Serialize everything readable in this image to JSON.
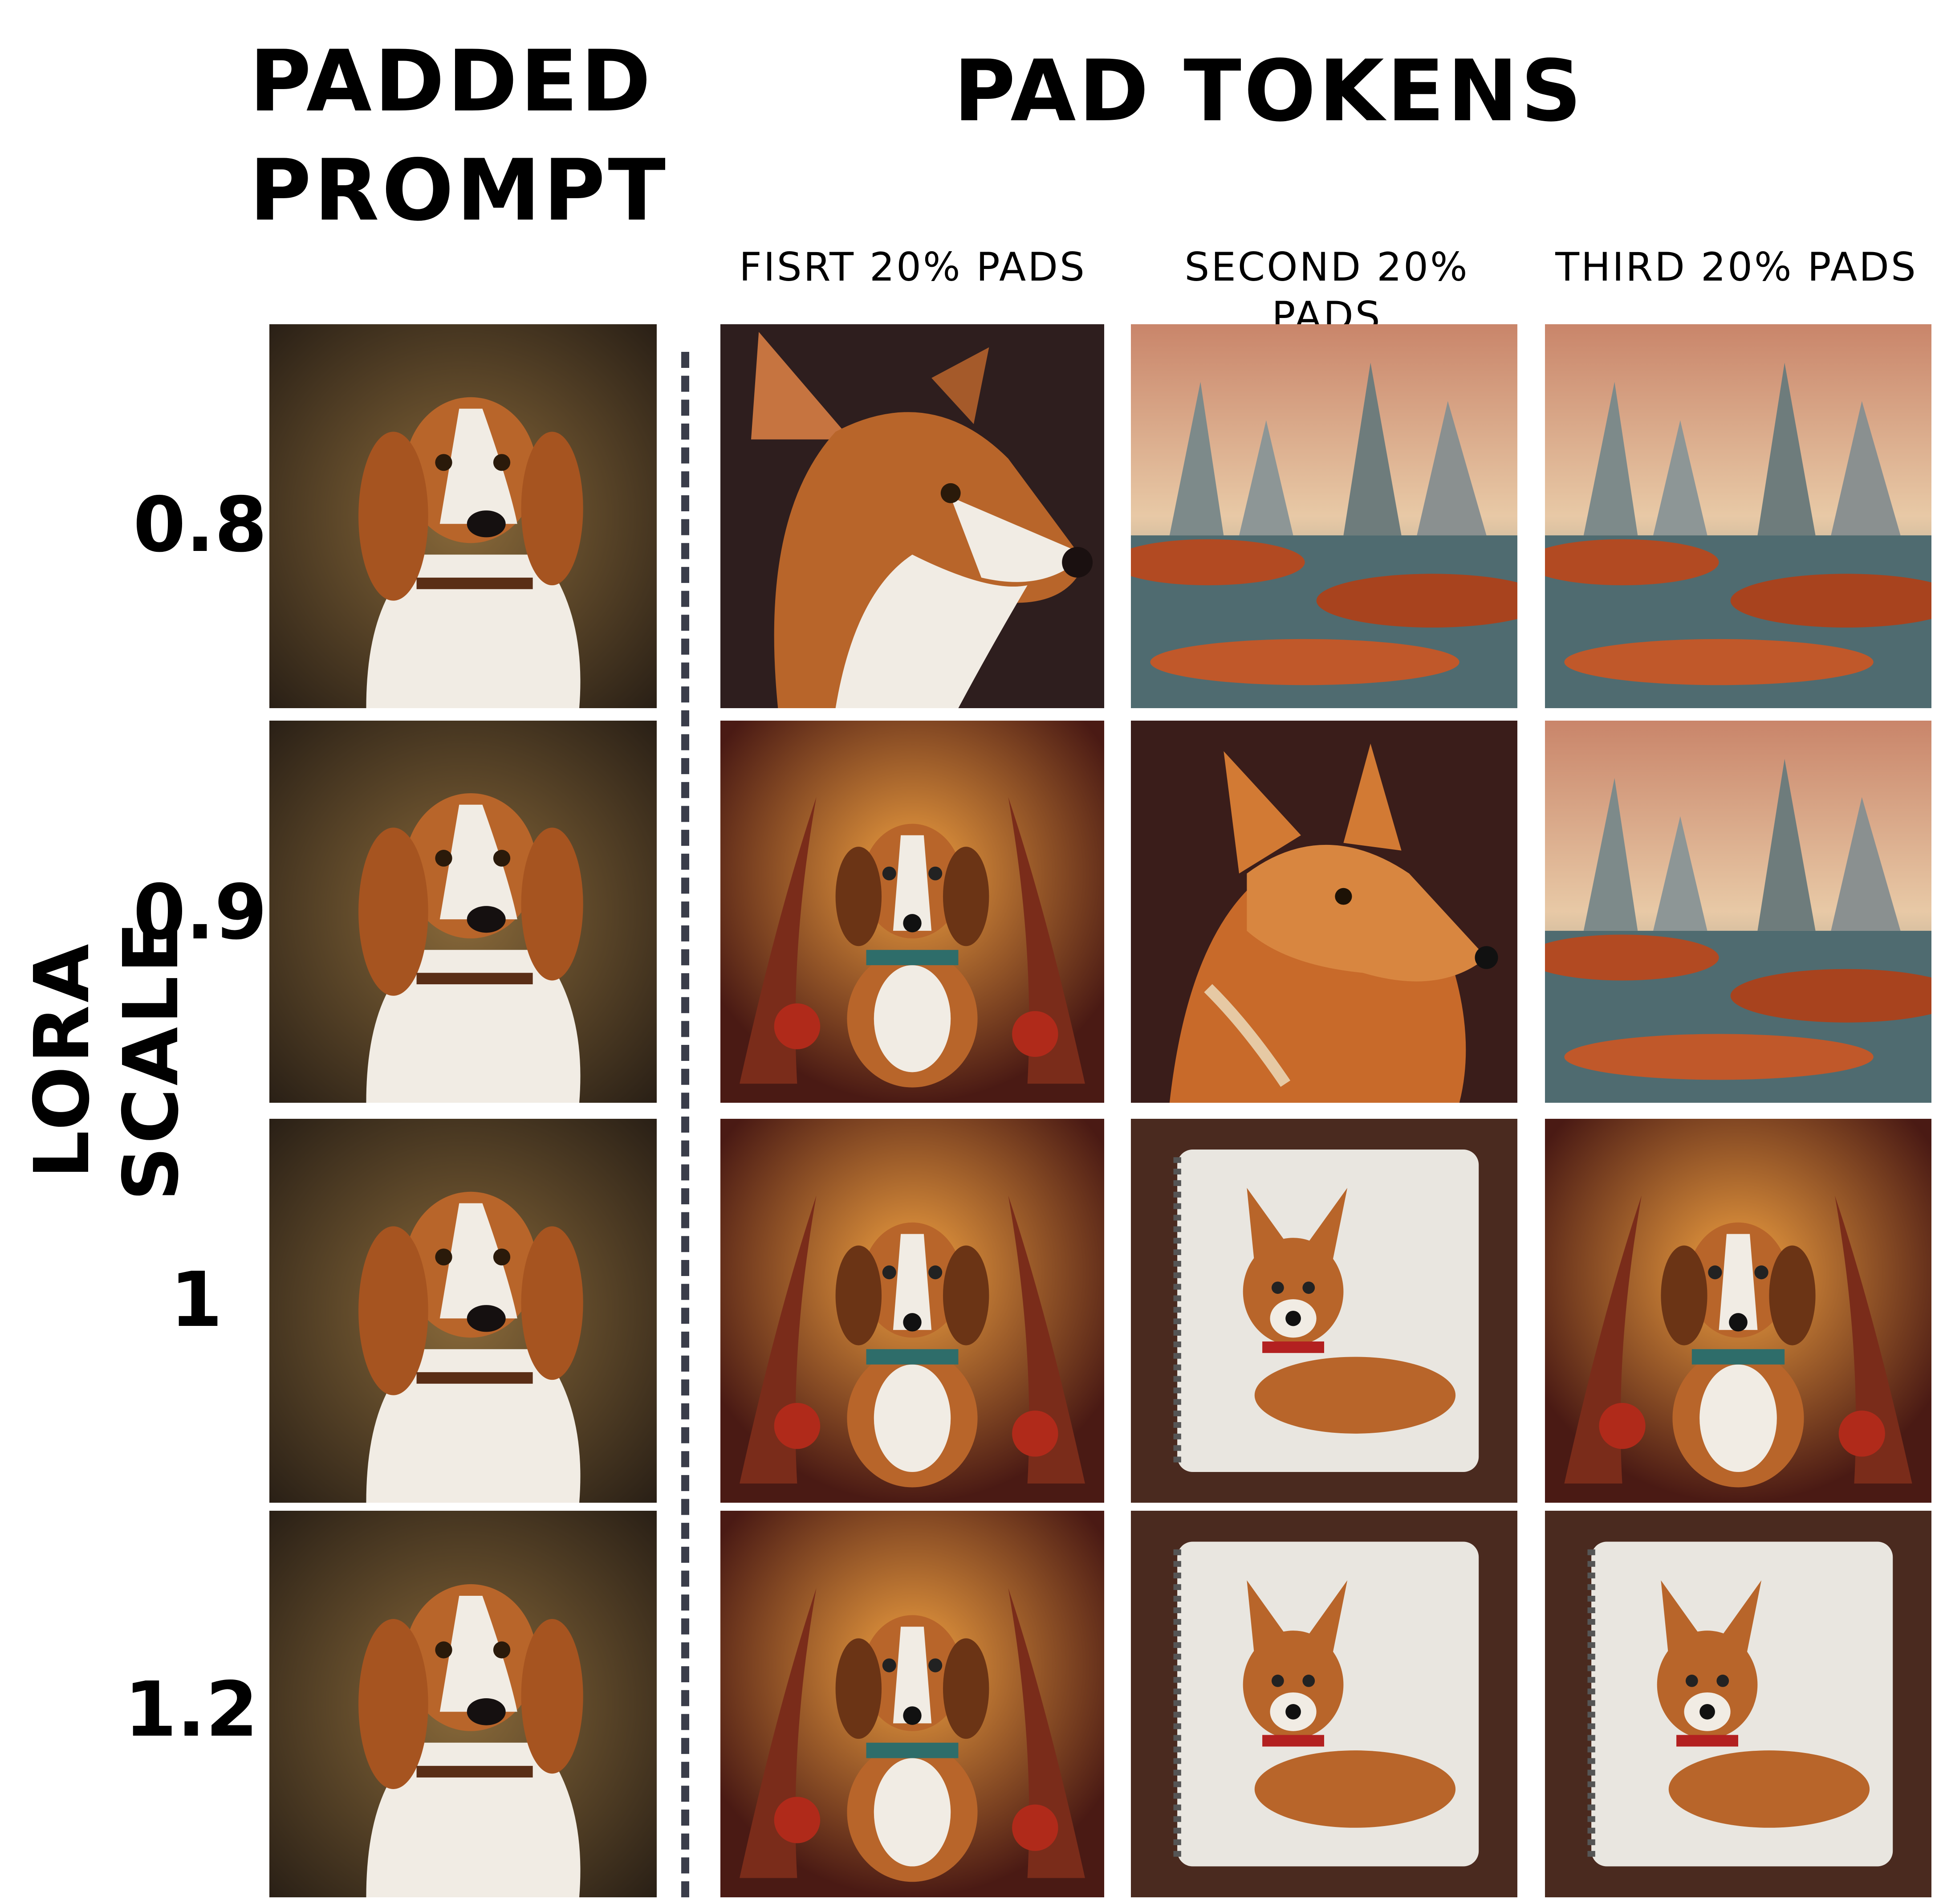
{
  "headers": {
    "padded_prompt": "PADDED PROMPT",
    "pad_tokens": "PAD TOKENS",
    "columns": [
      "FISRT 20% PADS",
      "SECOND 20% PADS",
      "THIRD 20% PADS"
    ],
    "row_axis": "LORA SCALE"
  },
  "lora_scales": [
    "0.8",
    "0.9",
    "1",
    "1.2"
  ],
  "colors": {
    "divider": "#3a3d4a",
    "dog_brown": "#b8652a",
    "dog_white": "#f1ece4"
  },
  "grid": [
    [
      "beagle-portrait",
      "dog-portrait",
      "landscape",
      "landscape"
    ],
    [
      "beagle-portrait",
      "dog-in-fantasy-frame",
      "fox-dog-portrait",
      "landscape"
    ],
    [
      "beagle-portrait",
      "dog-in-fantasy-frame",
      "dog-on-notebook",
      "dog-in-fantasy-frame"
    ],
    [
      "beagle-portrait",
      "dog-in-fantasy-frame",
      "dog-on-notebook",
      "dog-on-notebook"
    ]
  ]
}
